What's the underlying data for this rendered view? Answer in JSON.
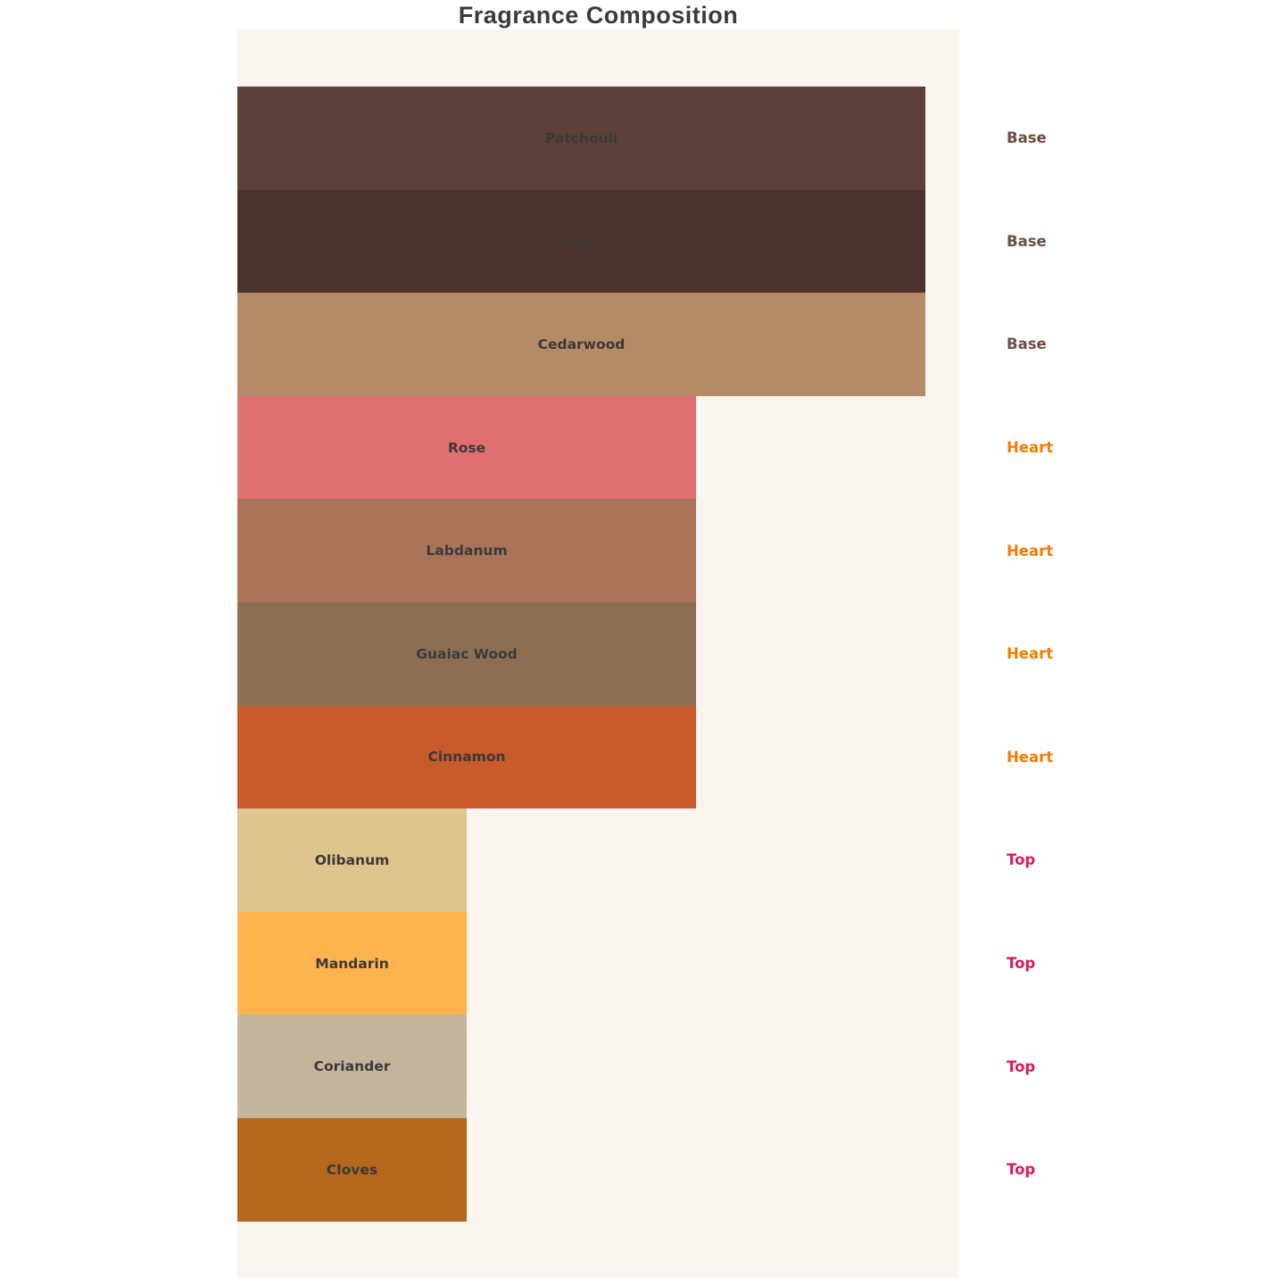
{
  "chart": {
    "title": "Fragrance Composition",
    "panel_background": "#faf5ee",
    "bar_label_color": "#3a3a3a",
    "title_color": "#3b3b3b"
  },
  "chart_data": {
    "type": "bar",
    "orientation": "horizontal",
    "title": "Fragrance Composition",
    "categories": [
      "Patchouli",
      "Oud",
      "Cedarwood",
      "Rose",
      "Labdanum",
      "Guaiac Wood",
      "Cinnamon",
      "Olibanum",
      "Mandarin",
      "Coriander",
      "Cloves"
    ],
    "values": [
      3,
      3,
      3,
      2,
      2,
      2,
      2,
      1,
      1,
      1,
      1
    ],
    "groups": [
      "Base",
      "Base",
      "Base",
      "Heart",
      "Heart",
      "Heart",
      "Heart",
      "Top",
      "Top",
      "Top",
      "Top"
    ],
    "bar_colors": [
      "#5d4138",
      "#4d332d",
      "#b58a66",
      "#e06f6f",
      "#aa7458",
      "#8d6e52",
      "#c85a2c",
      "#ddc58d",
      "#fdb44e",
      "#c2b59b",
      "#b5671c"
    ],
    "group_colors": {
      "Base": "#6d4c41",
      "Heart": "#f57c00",
      "Top": "#d81b60"
    },
    "xlabel": "",
    "ylabel": "",
    "legend": "none",
    "grid": false,
    "value_unit": "relative width (Base:Heart:Top = 3:2:1)"
  }
}
